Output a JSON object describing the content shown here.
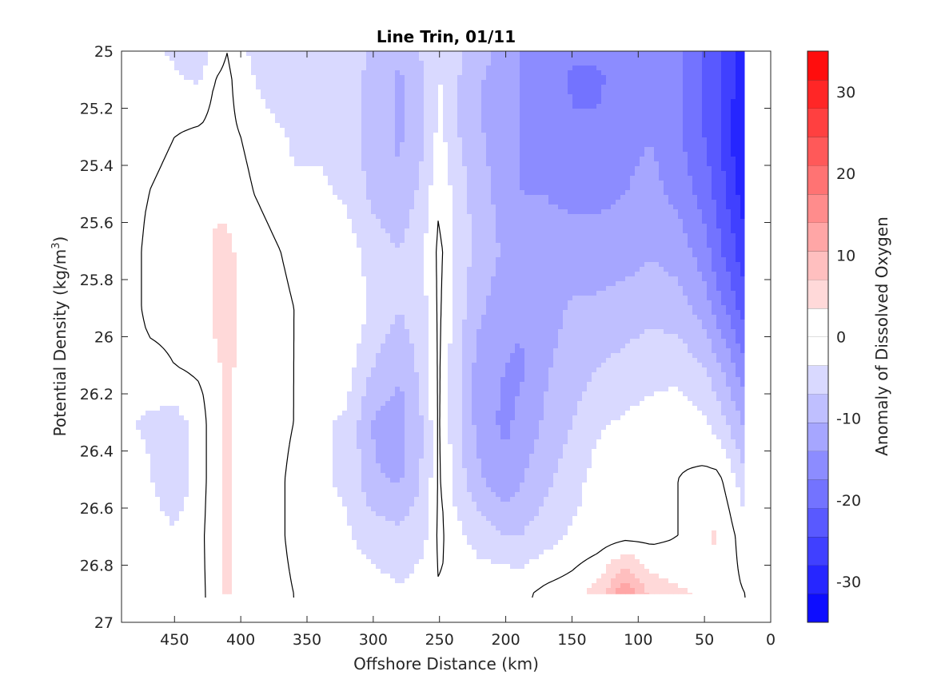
{
  "chart_data": {
    "type": "heatmap",
    "title": "Line Trin, 01/11",
    "xlabel": "Offshore Distance (km)",
    "ylabel_main": "Potential Density (kg/m",
    "ylabel_sup": "3",
    "ylabel_end": ")",
    "colorbar_label": "Anomaly of Dissolved Oxygen",
    "xlim": [
      490,
      0
    ],
    "ylim": [
      25,
      27
    ],
    "x_reversed": true,
    "y_reversed": true,
    "x_ticks": [
      450,
      400,
      350,
      300,
      250,
      200,
      150,
      100,
      50,
      0
    ],
    "x_tick_labels": [
      "450",
      "400",
      "350",
      "300",
      "250",
      "200",
      "150",
      "100",
      "50",
      "0"
    ],
    "y_ticks": [
      25,
      25.2,
      25.4,
      25.6,
      25.8,
      26,
      26.2,
      26.4,
      26.6,
      26.8,
      27
    ],
    "y_tick_labels": [
      "25",
      "25.2",
      "25.4",
      "25.6",
      "25.8",
      "26",
      "26.2",
      "26.4",
      "26.6",
      "26.8",
      "27"
    ],
    "colorbar_range": [
      -35,
      35
    ],
    "colorbar_levels": 20,
    "colorbar_ticks": [
      30,
      20,
      10,
      0,
      -10,
      -20,
      -30
    ],
    "colorbar_tick_labels": [
      "30",
      "20",
      "10",
      "0",
      "-10",
      "-20",
      "-30"
    ],
    "colormap": {
      "negative": "#0000ff",
      "zero": "#ffffff",
      "positive": "#ff0000"
    },
    "zero_contour": true,
    "grid": false,
    "x_nodes": [
      490,
      470,
      450,
      430,
      420,
      410,
      400,
      380,
      360,
      340,
      320,
      300,
      280,
      260,
      250,
      240,
      220,
      200,
      190,
      170,
      150,
      130,
      110,
      90,
      70,
      50,
      40,
      30,
      20
    ],
    "y_nodes": [
      25.0,
      25.1,
      25.3,
      25.5,
      25.7,
      25.9,
      26.1,
      26.3,
      26.5,
      26.7,
      26.9
    ],
    "values": [
      [
        -3,
        -3,
        -4,
        -6,
        -2,
        0,
        -3,
        -5,
        -7,
        -5,
        -4,
        -8,
        -10,
        -6,
        -3,
        -6,
        -9,
        -12,
        -14,
        -14,
        -17,
        -17,
        -15,
        -14,
        -17,
        -21,
        -24,
        -27,
        -30
      ],
      [
        -2,
        -2,
        -3,
        -4,
        0,
        1,
        -2,
        -5,
        -6,
        -5,
        -4,
        -9,
        -11,
        -7,
        -3,
        -6,
        -10,
        -13,
        -14,
        -15,
        -18,
        -18,
        -16,
        -14,
        -17,
        -21,
        -24,
        -27,
        -31
      ],
      [
        -2,
        -1,
        0,
        1,
        2,
        1,
        0,
        -2,
        -4,
        -4,
        -5,
        -9,
        -11,
        -7,
        -2,
        -6,
        -10,
        -13,
        -14,
        -15,
        -17,
        -17,
        -15,
        -14,
        -17,
        -21,
        -24,
        -28,
        -32
      ],
      [
        -3,
        0,
        1,
        2,
        3,
        3,
        1,
        -1,
        -3,
        -3,
        -4,
        -8,
        -10,
        -5,
        0,
        -4,
        -9,
        -12,
        -14,
        -14,
        -15,
        -15,
        -14,
        -13,
        -15,
        -19,
        -22,
        -26,
        -30
      ],
      [
        -3,
        1,
        1,
        2,
        4,
        4,
        3,
        1,
        -1,
        -2,
        -2,
        -5,
        -7,
        -3,
        1,
        -3,
        -9,
        -11,
        -13,
        -13,
        -12,
        -12,
        -12,
        -11,
        -12,
        -16,
        -20,
        -23,
        -27
      ],
      [
        -3,
        1,
        1,
        2,
        4,
        5,
        3,
        2,
        0,
        -1,
        -1,
        -4,
        -7,
        -4,
        1,
        -4,
        -10,
        -12,
        -13,
        -12,
        -10,
        -10,
        -9,
        -8,
        -9,
        -12,
        -16,
        -19,
        -23
      ],
      [
        -3,
        -1,
        0,
        1,
        3,
        4,
        3,
        2,
        0,
        -2,
        -2,
        -7,
        -10,
        -5,
        1,
        -5,
        -12,
        -14,
        -15,
        -11,
        -9,
        -7,
        -6,
        -5,
        -5,
        -7,
        -10,
        -13,
        -17
      ],
      [
        -3,
        -4,
        -5,
        -2,
        3,
        4,
        3,
        2,
        0,
        -3,
        -4,
        -11,
        -12,
        -6,
        1,
        -5,
        -12,
        -15,
        -13,
        -10,
        -7,
        -4,
        -3,
        -2,
        -1,
        -3,
        -5,
        -8,
        -11
      ],
      [
        -2,
        -3,
        -6,
        -2,
        3,
        4,
        3,
        2,
        -1,
        -3,
        -4,
        -10,
        -11,
        -6,
        1,
        -4,
        -10,
        -13,
        -11,
        -8,
        -5,
        -2,
        -2,
        0,
        0,
        1,
        1,
        -2,
        -6
      ],
      [
        -1,
        -2,
        -3,
        -1,
        3,
        4,
        3,
        2,
        -1,
        -3,
        -3,
        -5,
        -6,
        -4,
        1,
        -2,
        -5,
        -7,
        -7,
        -5,
        -3,
        -2,
        -1,
        -1,
        0,
        3,
        4,
        1,
        -2
      ],
      [
        -1,
        -1,
        -2,
        -1,
        2,
        4,
        3,
        2,
        0,
        -2,
        -2,
        -2,
        -3,
        -2,
        0,
        -1,
        -1,
        0,
        -1,
        1,
        2,
        5,
        14,
        6,
        4,
        3,
        2,
        1,
        0
      ]
    ]
  }
}
